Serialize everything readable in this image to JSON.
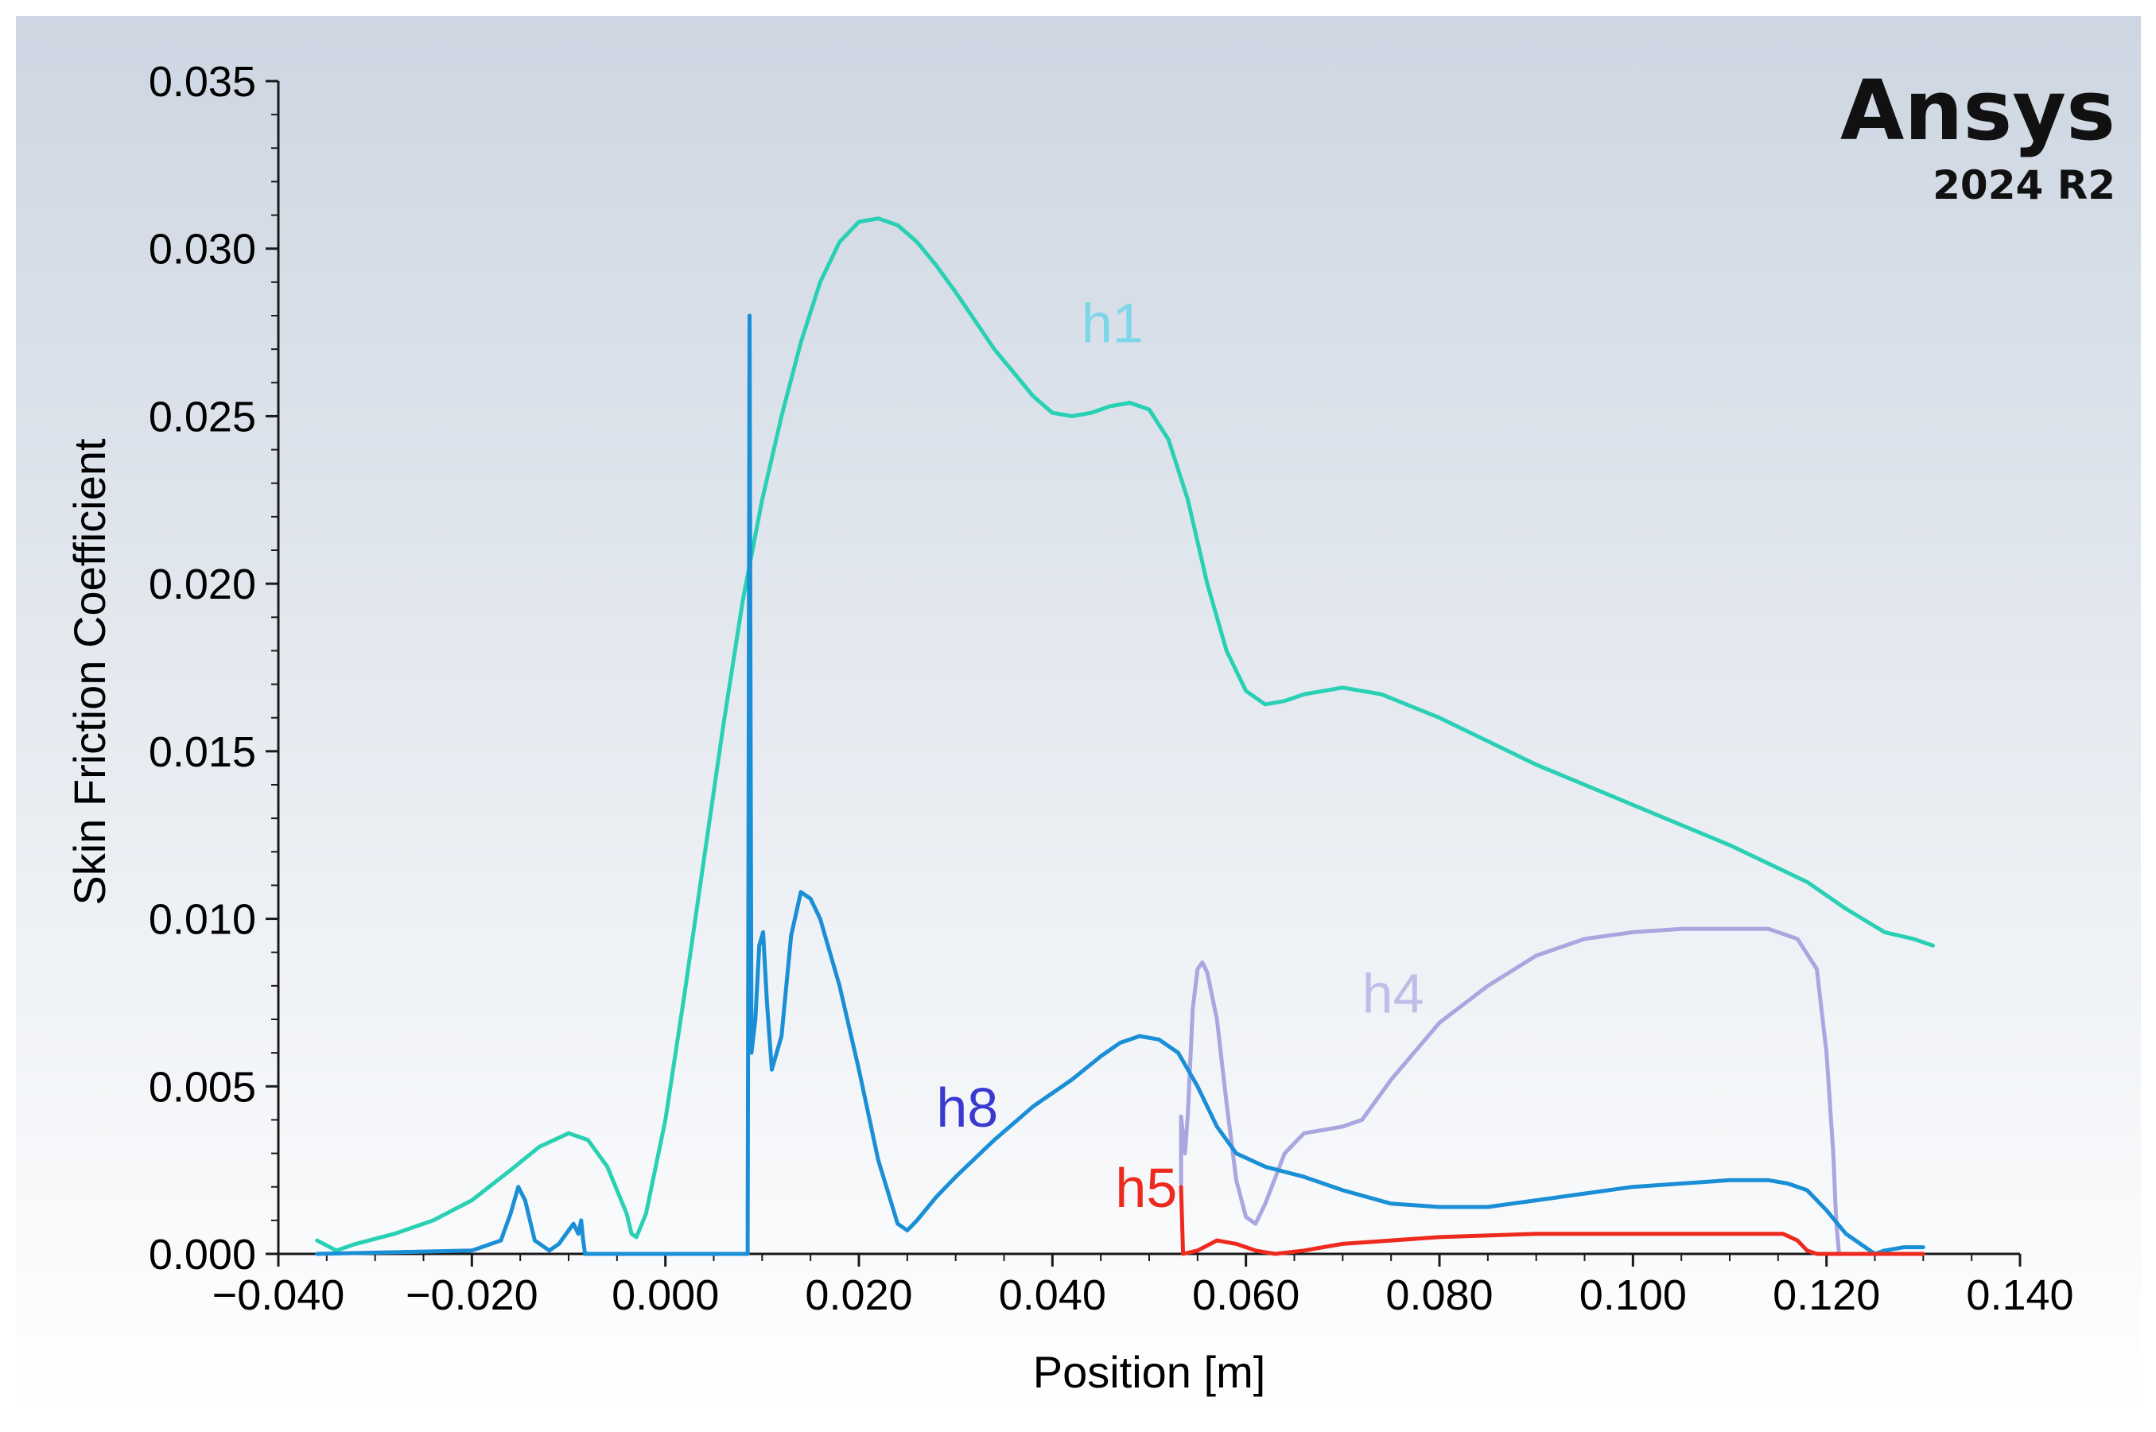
{
  "brand": {
    "name": "Ansys",
    "version": "2024 R2"
  },
  "colors": {
    "background_top": "#cdd6e2",
    "background_bottom": "#ffffff",
    "axis": "#1a1a1a",
    "h1": "#2ad0b4",
    "h8": "#1a8fd6",
    "h4": "#a9a6e0",
    "h5": "#ee2a1f",
    "h1_label": "#7fd6e8",
    "h8_label": "#3a3ad0",
    "h4_label": "#c0bde8",
    "h5_label": "#ee2a1f"
  },
  "chart_data": {
    "type": "line",
    "title": "",
    "xlabel": "Position [m]",
    "ylabel": "Skin Friction Coefficient",
    "xlim": [
      -0.04,
      0.14
    ],
    "ylim": [
      0.0,
      0.035
    ],
    "xticks": [
      -0.04,
      -0.02,
      0.0,
      0.02,
      0.04,
      0.06,
      0.08,
      0.1,
      0.12,
      0.14
    ],
    "xtick_labels": [
      "−0.040",
      "−0.020",
      "0.000",
      "0.020",
      "0.040",
      "0.060",
      "0.080",
      "0.100",
      "0.120",
      "0.140"
    ],
    "yticks": [
      0.0,
      0.005,
      0.01,
      0.015,
      0.02,
      0.025,
      0.03,
      0.035
    ],
    "ytick_labels": [
      "0.000",
      "0.005",
      "0.010",
      "0.015",
      "0.020",
      "0.025",
      "0.030",
      "0.035"
    ],
    "grid": false,
    "legend": "inline labels",
    "series": [
      {
        "name": "h1",
        "color": "#2ad0b4",
        "label_at": [
          0.043,
          0.0272
        ],
        "points": [
          [
            -0.036,
            0.0004
          ],
          [
            -0.034,
            0.0001
          ],
          [
            -0.032,
            0.0003
          ],
          [
            -0.028,
            0.0006
          ],
          [
            -0.024,
            0.001
          ],
          [
            -0.02,
            0.0016
          ],
          [
            -0.016,
            0.0025
          ],
          [
            -0.013,
            0.0032
          ],
          [
            -0.01,
            0.0036
          ],
          [
            -0.008,
            0.0034
          ],
          [
            -0.006,
            0.0026
          ],
          [
            -0.004,
            0.0012
          ],
          [
            -0.0035,
            0.0006
          ],
          [
            -0.003,
            0.0005
          ],
          [
            -0.002,
            0.0012
          ],
          [
            0.0,
            0.004
          ],
          [
            0.002,
            0.0078
          ],
          [
            0.004,
            0.0118
          ],
          [
            0.006,
            0.0158
          ],
          [
            0.008,
            0.0195
          ],
          [
            0.01,
            0.0225
          ],
          [
            0.012,
            0.025
          ],
          [
            0.014,
            0.0272
          ],
          [
            0.016,
            0.029
          ],
          [
            0.018,
            0.0302
          ],
          [
            0.02,
            0.0308
          ],
          [
            0.022,
            0.0309
          ],
          [
            0.024,
            0.0307
          ],
          [
            0.026,
            0.0302
          ],
          [
            0.028,
            0.0295
          ],
          [
            0.03,
            0.0287
          ],
          [
            0.034,
            0.027
          ],
          [
            0.038,
            0.0256
          ],
          [
            0.04,
            0.0251
          ],
          [
            0.042,
            0.025
          ],
          [
            0.044,
            0.0251
          ],
          [
            0.046,
            0.0253
          ],
          [
            0.048,
            0.0254
          ],
          [
            0.05,
            0.0252
          ],
          [
            0.052,
            0.0243
          ],
          [
            0.054,
            0.0225
          ],
          [
            0.056,
            0.02
          ],
          [
            0.058,
            0.018
          ],
          [
            0.06,
            0.0168
          ],
          [
            0.062,
            0.0164
          ],
          [
            0.064,
            0.0165
          ],
          [
            0.066,
            0.0167
          ],
          [
            0.07,
            0.0169
          ],
          [
            0.074,
            0.0167
          ],
          [
            0.08,
            0.016
          ],
          [
            0.09,
            0.0146
          ],
          [
            0.1,
            0.0134
          ],
          [
            0.11,
            0.0122
          ],
          [
            0.118,
            0.0111
          ],
          [
            0.122,
            0.0103
          ],
          [
            0.126,
            0.0096
          ],
          [
            0.129,
            0.0094
          ],
          [
            0.131,
            0.0092
          ]
        ]
      },
      {
        "name": "h8",
        "color": "#1a8fd6",
        "label_at": [
          0.028,
          0.0038
        ],
        "points": [
          [
            -0.036,
            0.0
          ],
          [
            -0.02,
            0.0001
          ],
          [
            -0.017,
            0.0004
          ],
          [
            -0.016,
            0.0012
          ],
          [
            -0.0152,
            0.002
          ],
          [
            -0.0145,
            0.0016
          ],
          [
            -0.0135,
            0.0004
          ],
          [
            -0.012,
            0.0001
          ],
          [
            -0.011,
            0.0003
          ],
          [
            -0.01,
            0.0007
          ],
          [
            -0.0095,
            0.0009
          ],
          [
            -0.009,
            0.0006
          ],
          [
            -0.0087,
            0.001
          ],
          [
            -0.0085,
            0.0004
          ],
          [
            -0.0083,
            0.0
          ],
          [
            0.0,
            0.0
          ],
          [
            0.0085,
            0.0
          ],
          [
            0.0087,
            0.028
          ],
          [
            0.0089,
            0.006
          ],
          [
            0.0093,
            0.007
          ],
          [
            0.0097,
            0.0092
          ],
          [
            0.0101,
            0.0096
          ],
          [
            0.0105,
            0.0075
          ],
          [
            0.011,
            0.0055
          ],
          [
            0.012,
            0.0065
          ],
          [
            0.013,
            0.0095
          ],
          [
            0.014,
            0.0108
          ],
          [
            0.015,
            0.0106
          ],
          [
            0.016,
            0.01
          ],
          [
            0.018,
            0.008
          ],
          [
            0.02,
            0.0055
          ],
          [
            0.022,
            0.0028
          ],
          [
            0.024,
            0.0009
          ],
          [
            0.025,
            0.0007
          ],
          [
            0.026,
            0.001
          ],
          [
            0.028,
            0.0017
          ],
          [
            0.03,
            0.0023
          ],
          [
            0.034,
            0.0034
          ],
          [
            0.038,
            0.0044
          ],
          [
            0.042,
            0.0052
          ],
          [
            0.045,
            0.0059
          ],
          [
            0.047,
            0.0063
          ],
          [
            0.049,
            0.0065
          ],
          [
            0.051,
            0.0064
          ],
          [
            0.053,
            0.006
          ],
          [
            0.055,
            0.005
          ],
          [
            0.057,
            0.0038
          ],
          [
            0.059,
            0.003
          ],
          [
            0.062,
            0.0026
          ],
          [
            0.066,
            0.0023
          ],
          [
            0.07,
            0.0019
          ],
          [
            0.075,
            0.0015
          ],
          [
            0.08,
            0.0014
          ],
          [
            0.085,
            0.0014
          ],
          [
            0.09,
            0.0016
          ],
          [
            0.095,
            0.0018
          ],
          [
            0.1,
            0.002
          ],
          [
            0.105,
            0.0021
          ],
          [
            0.11,
            0.0022
          ],
          [
            0.114,
            0.0022
          ],
          [
            0.116,
            0.0021
          ],
          [
            0.118,
            0.0019
          ],
          [
            0.12,
            0.0013
          ],
          [
            0.122,
            0.0006
          ],
          [
            0.124,
            0.0002
          ],
          [
            0.125,
            0.0
          ],
          [
            0.126,
            0.0001
          ],
          [
            0.128,
            0.0002
          ],
          [
            0.13,
            0.0002
          ]
        ]
      },
      {
        "name": "h4",
        "color": "#a9a6e0",
        "label_at": [
          0.072,
          0.0072
        ],
        "points": [
          [
            0.0533,
            0.0021
          ],
          [
            0.0533,
            0.0041
          ],
          [
            0.0537,
            0.003
          ],
          [
            0.054,
            0.0042
          ],
          [
            0.0545,
            0.0073
          ],
          [
            0.055,
            0.0085
          ],
          [
            0.0555,
            0.0087
          ],
          [
            0.056,
            0.0084
          ],
          [
            0.057,
            0.007
          ],
          [
            0.058,
            0.0045
          ],
          [
            0.059,
            0.0022
          ],
          [
            0.06,
            0.0011
          ],
          [
            0.061,
            0.0009
          ],
          [
            0.062,
            0.0015
          ],
          [
            0.064,
            0.003
          ],
          [
            0.066,
            0.0036
          ],
          [
            0.068,
            0.0037
          ],
          [
            0.07,
            0.0038
          ],
          [
            0.072,
            0.004
          ],
          [
            0.075,
            0.0052
          ],
          [
            0.08,
            0.0069
          ],
          [
            0.085,
            0.008
          ],
          [
            0.09,
            0.0089
          ],
          [
            0.095,
            0.0094
          ],
          [
            0.1,
            0.0096
          ],
          [
            0.105,
            0.0097
          ],
          [
            0.11,
            0.0097
          ],
          [
            0.114,
            0.0097
          ],
          [
            0.117,
            0.0094
          ],
          [
            0.119,
            0.0085
          ],
          [
            0.12,
            0.006
          ],
          [
            0.1207,
            0.003
          ],
          [
            0.121,
            0.001
          ],
          [
            0.1213,
            0.0
          ]
        ]
      },
      {
        "name": "h5",
        "color": "#ee2a1f",
        "label_at": [
          0.0465,
          0.0014
        ],
        "points": [
          [
            0.0533,
            0.002
          ],
          [
            0.0535,
            0.0
          ],
          [
            0.055,
            0.0001
          ],
          [
            0.057,
            0.0004
          ],
          [
            0.059,
            0.0003
          ],
          [
            0.061,
            0.0001
          ],
          [
            0.063,
            0.0
          ],
          [
            0.066,
            0.0001
          ],
          [
            0.07,
            0.0003
          ],
          [
            0.08,
            0.0005
          ],
          [
            0.09,
            0.0006
          ],
          [
            0.1,
            0.0006
          ],
          [
            0.11,
            0.0006
          ],
          [
            0.1155,
            0.0006
          ],
          [
            0.117,
            0.0004
          ],
          [
            0.118,
            0.0001
          ],
          [
            0.119,
            0.0
          ],
          [
            0.13,
            0.0
          ]
        ]
      }
    ]
  }
}
